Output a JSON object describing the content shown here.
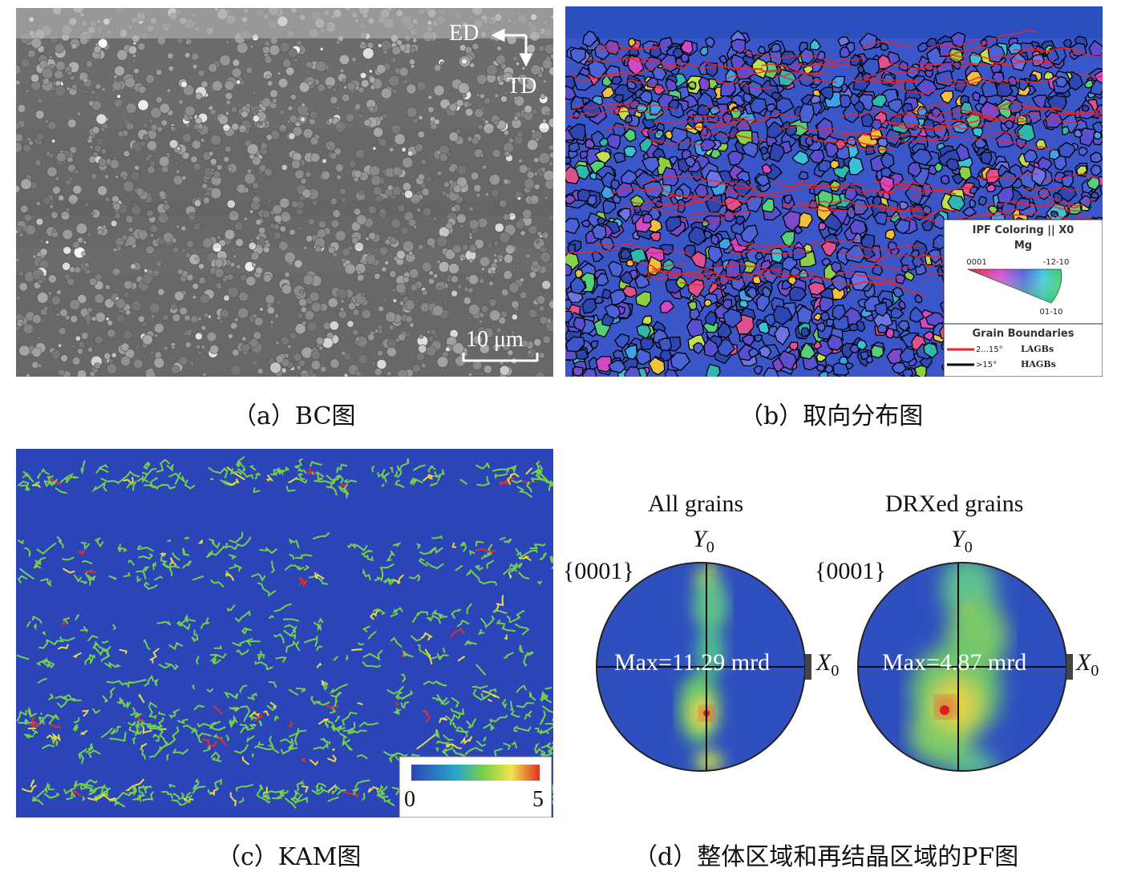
{
  "panel_a": {
    "caption": "（a）BC图",
    "direction_ed": "ED",
    "direction_td": "TD",
    "scale_bar": "10 μm",
    "colors": {
      "background": "#6f6f6f",
      "grain": "#9a9a9a",
      "grain_bright": "#d8d8d8"
    }
  },
  "panel_b": {
    "caption": "（b）取向分布图",
    "legend": {
      "title": "IPF Coloring || X0",
      "material": "Mg",
      "corner_0001": "0001",
      "corner_1210": "-12-10",
      "corner_0110": "01-10",
      "boundaries_title": "Grain Boundaries",
      "lagb_range": "2...15°",
      "lagb_label": "LAGBs",
      "hagb_range": ">15°",
      "hagb_label": "HAGBs"
    },
    "colors": {
      "lagb": "#e8262a",
      "hagb": "#000000",
      "base": "#3a56c8"
    }
  },
  "panel_c": {
    "caption": "（c）KAM图",
    "colorbar": {
      "min": "0",
      "max": "5"
    },
    "colors": {
      "background": "#2b45b8",
      "low": "#2b45b8",
      "mid": "#72d04a",
      "high": "#e0302a"
    }
  },
  "panel_d": {
    "caption": "（d）整体区域和再结晶区域的PF图",
    "figures": [
      {
        "title": "All grains",
        "plane": "{0001}",
        "axis_y": "Y",
        "axis_x": "X",
        "axis_sub": "0",
        "max_label": "Max=11.29 mrd"
      },
      {
        "title": "DRXed grains",
        "plane": "{0001}",
        "axis_y": "Y",
        "axis_x": "X",
        "axis_sub": "0",
        "max_label": "Max=4.87 mrd"
      }
    ]
  }
}
